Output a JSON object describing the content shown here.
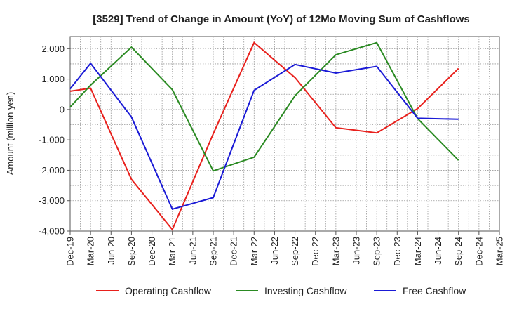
{
  "chart_data": {
    "type": "line",
    "title": "[3529]  Trend of Change in Amount (YoY) of 12Mo Moving Sum of Cashflows",
    "xlabel": "",
    "ylabel": "Amount (million yen)",
    "ylim": [
      -4000,
      2400
    ],
    "yticks": [
      -4000,
      -3000,
      -2000,
      -1000,
      0,
      1000,
      2000
    ],
    "ytick_labels": [
      "-4,000",
      "-3,000",
      "-2,000",
      "-1,000",
      "0",
      "1,000",
      "2,000"
    ],
    "categories": [
      "Dec-19",
      "Mar-20",
      "Jun-20",
      "Sep-20",
      "Dec-20",
      "Mar-21",
      "Jun-21",
      "Sep-21",
      "Dec-21",
      "Mar-22",
      "Jun-22",
      "Sep-22",
      "Dec-22",
      "Mar-23",
      "Jun-23",
      "Sep-23",
      "Dec-23",
      "Mar-24",
      "Jun-24",
      "Sep-24",
      "Dec-24",
      "Mar-25"
    ],
    "grid": true,
    "legend_position": "bottom",
    "series": [
      {
        "name": "Operating Cashflow",
        "color": "#e8201c",
        "values": [
          600,
          700,
          null,
          -2300,
          null,
          -3950,
          null,
          -800,
          null,
          2200,
          null,
          1050,
          null,
          -600,
          null,
          -770,
          null,
          30,
          null,
          1350,
          null,
          null
        ]
      },
      {
        "name": "Investing Cashflow",
        "color": "#2a8a22",
        "values": [
          80,
          800,
          null,
          2050,
          null,
          650,
          null,
          -2020,
          null,
          -1570,
          null,
          450,
          null,
          1800,
          null,
          2200,
          null,
          -300,
          null,
          -1670,
          null,
          null
        ]
      },
      {
        "name": "Free Cashflow",
        "color": "#1a1ad6",
        "values": [
          680,
          1520,
          null,
          -250,
          null,
          -3280,
          null,
          -2900,
          null,
          630,
          null,
          1480,
          null,
          1200,
          null,
          1420,
          null,
          -290,
          null,
          -320,
          null,
          null
        ]
      }
    ]
  }
}
